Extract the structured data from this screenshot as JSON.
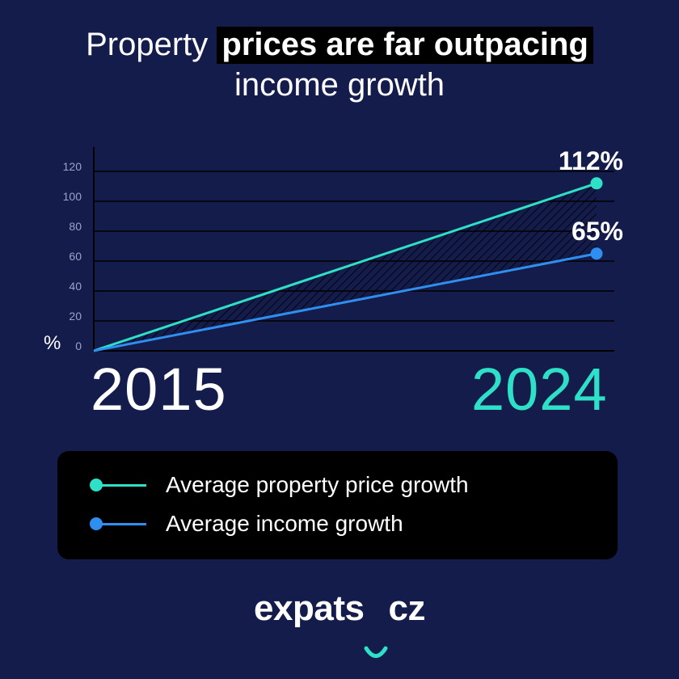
{
  "title": {
    "pre": "Property ",
    "highlight": "prices are far outpacing",
    "line2": "income growth"
  },
  "chart_data": {
    "type": "line",
    "x": [
      2015,
      2024
    ],
    "xlabels": [
      "2015",
      "2024"
    ],
    "ylabel": "%",
    "ylim": [
      0,
      130
    ],
    "yticks": [
      0,
      20,
      40,
      60,
      80,
      100,
      120
    ],
    "grid": true,
    "series": [
      {
        "name": "Average property price growth",
        "values": [
          0,
          112
        ],
        "end_label": "112%",
        "color": "#2fe0c8"
      },
      {
        "name": "Average income growth",
        "values": [
          0,
          65
        ],
        "end_label": "65%",
        "color": "#2f8ff0"
      }
    ],
    "gap_fill": "hatched"
  },
  "legend": {
    "items": [
      {
        "label": "Average property price growth",
        "color": "#2fe0c8"
      },
      {
        "label": "Average income growth",
        "color": "#2f8ff0"
      }
    ]
  },
  "colors": {
    "background": "#141c4c",
    "accent": "#2fe0c8",
    "secondary": "#2f8ff0",
    "panel": "#000000"
  },
  "logo": {
    "left": "expats",
    "right": "cz"
  }
}
